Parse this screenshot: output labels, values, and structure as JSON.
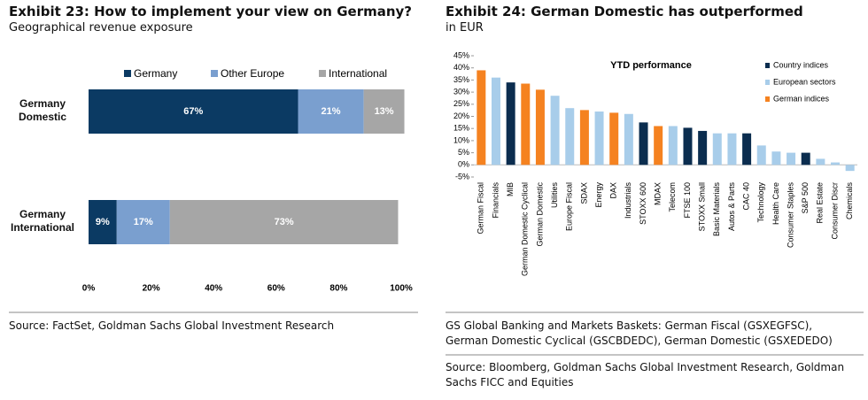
{
  "chart_data": [
    {
      "type": "stacked-barh",
      "title": "Exhibit 23: How to implement your view on Germany?",
      "subtitle": "Geographical revenue exposure",
      "categories": [
        "Germany Domestic",
        "Germany International"
      ],
      "series": [
        {
          "name": "Germany",
          "color": "#0b3a63",
          "values": [
            67,
            9
          ],
          "value_labels": [
            "67%",
            "9%"
          ]
        },
        {
          "name": "Other Europe",
          "color": "#7a9fcf",
          "values": [
            21,
            17
          ],
          "value_labels": [
            "21%",
            "17%"
          ]
        },
        {
          "name": "International",
          "color": "#a6a6a6",
          "values": [
            13,
            73
          ],
          "value_labels": [
            "13%",
            "73%"
          ]
        }
      ],
      "xlim": [
        0,
        100
      ],
      "xticks": [
        {
          "value": 0,
          "label": "0%"
        },
        {
          "value": 20,
          "label": "20%"
        },
        {
          "value": 40,
          "label": "40%"
        },
        {
          "value": 60,
          "label": "60%"
        },
        {
          "value": 80,
          "label": "80%"
        },
        {
          "value": 100,
          "label": "100%"
        }
      ],
      "source": "Source: FactSet, Goldman Sachs Global Investment Research"
    },
    {
      "type": "bar",
      "title": "Exhibit 24: German Domestic has outperformed",
      "subtitle": "in EUR",
      "inner_title": "YTD performance",
      "categories": [
        "German Fiscal",
        "Financials",
        "MIB",
        "German Domestic Cyclical",
        "German Domestic",
        "Utilities",
        "Europe Fiscal",
        "SDAX",
        "Energy",
        "DAX",
        "Industrials",
        "STOXX 600",
        "MDAX",
        "Telecom",
        "FTSE 100",
        "STOXX Small",
        "Basic Materials",
        "Autos & Parts",
        "CAC 40",
        "Technology",
        "Health Care",
        "Consumer Staples",
        "S&P 500",
        "Real Estate",
        "Consumer Discr",
        "Chemicals"
      ],
      "series": [
        {
          "name": "Country indices",
          "color": "#0b2d4f",
          "values": [
            null,
            null,
            34,
            null,
            null,
            null,
            null,
            null,
            null,
            null,
            null,
            17.5,
            null,
            null,
            15.3,
            14,
            null,
            null,
            13,
            null,
            null,
            null,
            5,
            null,
            null,
            null
          ]
        },
        {
          "name": "European sectors",
          "color": "#a8cdea",
          "values": [
            null,
            36,
            null,
            null,
            null,
            28.5,
            23.4,
            null,
            22,
            null,
            21,
            null,
            null,
            16,
            null,
            null,
            13,
            13,
            null,
            8,
            5.5,
            5,
            null,
            2.5,
            1,
            -2.5
          ]
        },
        {
          "name": "German indices",
          "color": "#f58220",
          "values": [
            39,
            null,
            null,
            33.5,
            31,
            null,
            null,
            22.6,
            null,
            21.5,
            null,
            null,
            16,
            null,
            null,
            null,
            null,
            null,
            null,
            null,
            null,
            null,
            null,
            null,
            null,
            null
          ]
        }
      ],
      "ylim": [
        -5,
        45
      ],
      "yticks": [
        {
          "value": -5,
          "label": "-5%"
        },
        {
          "value": 0,
          "label": "0%"
        },
        {
          "value": 5,
          "label": "5%"
        },
        {
          "value": 10,
          "label": "10%"
        },
        {
          "value": 15,
          "label": "15%"
        },
        {
          "value": 20,
          "label": "20%"
        },
        {
          "value": 25,
          "label": "25%"
        },
        {
          "value": 30,
          "label": "30%"
        },
        {
          "value": 35,
          "label": "35%"
        },
        {
          "value": 40,
          "label": "40%"
        },
        {
          "value": 45,
          "label": "45%"
        }
      ],
      "note": "GS Global Banking and Markets Baskets: German Fiscal (GSXEGFSC), German Domestic Cyclical (GSCBDEDC), German Domestic (GSXEDEDO)",
      "source": "Source: Bloomberg, Goldman Sachs Global Investment Research, Goldman Sachs FICC and Equities"
    }
  ]
}
